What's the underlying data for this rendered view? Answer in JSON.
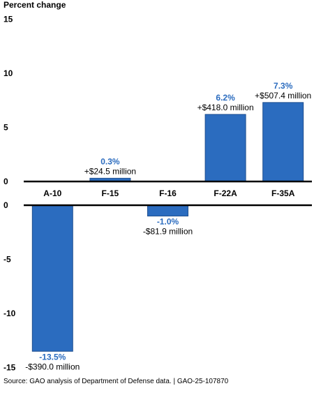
{
  "chart_data": {
    "type": "bar",
    "ylabel": "Percent change",
    "ylim": [
      -15,
      15
    ],
    "yticks": [
      "15",
      "10",
      "5",
      "0",
      "0",
      "-5",
      "-10",
      "-15"
    ],
    "categories": [
      "A-10",
      "F-15",
      "F-16",
      "F-22A",
      "F-35A"
    ],
    "values": [
      -13.5,
      0.3,
      -1.0,
      6.2,
      7.3
    ],
    "percent_labels": [
      "-13.5%",
      "0.3%",
      "-1.0%",
      "6.2%",
      "7.3%"
    ],
    "amount_labels": [
      "-$390.0 million",
      "+$24.5 million",
      "-$81.9 million",
      "+$418.0 million",
      "+$507.4 million"
    ],
    "grid": false,
    "legend": "none"
  },
  "colors": {
    "bar": "#2b6cbf",
    "bar_stroke": "#1f4f8f",
    "pct_label": "#2b6cbf",
    "axis": "#000000"
  },
  "source": "Source: GAO analysis of Department of Defense data.  |  GAO-25-107870"
}
